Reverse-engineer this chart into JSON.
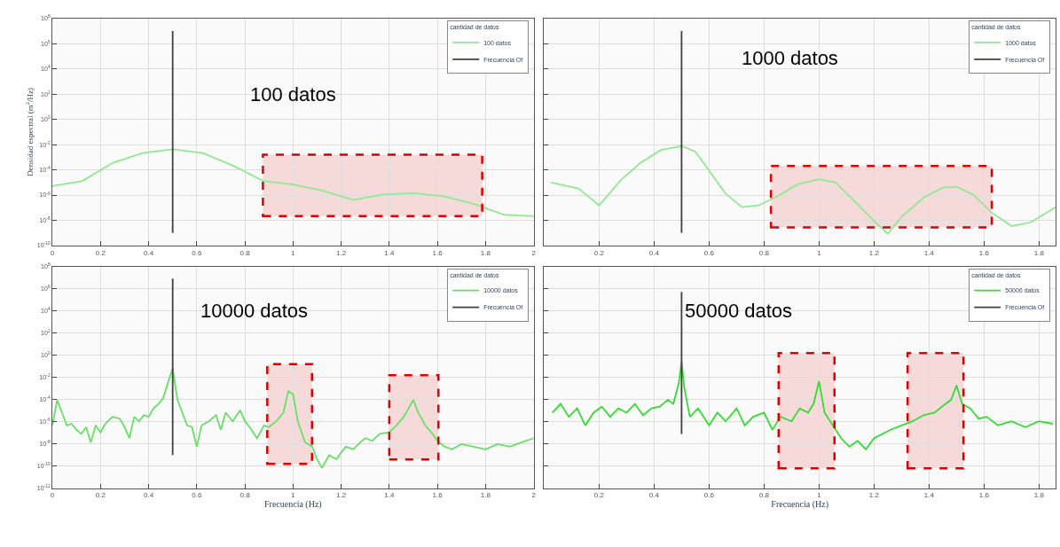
{
  "chart_data": [
    {
      "type": "line",
      "ylabel": "Densidad espectral (m$^{2}$/Hz)",
      "annotations": [
        "100 datos"
      ],
      "legend": "top right",
      "legend_title": "cantidad de datos",
      "grid": true,
      "log": "y",
      "xlim": [
        0,
        2
      ],
      "ylim": [
        1e-10,
        100000000.0
      ],
      "xticks": [
        0,
        0.2,
        0.4,
        0.6,
        0.8,
        1,
        1.2,
        1.4,
        1.6,
        1.8,
        2
      ],
      "yticks": [
        {
          "value": 100000000.0,
          "label": "10$^{8}$"
        },
        {
          "value": 1000000.0,
          "label": "10$^{6}$"
        },
        {
          "value": 10000.0,
          "label": "10$^{4}$"
        },
        {
          "value": 100,
          "label": "10$^{2}$"
        },
        {
          "value": 1,
          "label": "10$^{0}$"
        },
        {
          "value": 0.01,
          "label": "10$^{-2}$"
        },
        {
          "value": 0.0001,
          "label": "10$^{-4}$"
        },
        {
          "value": 1e-06,
          "label": "10$^{-6}$"
        },
        {
          "value": 1e-08,
          "label": "10$^{-8}$"
        },
        {
          "value": 1e-10,
          "label": "10$^{-10}$"
        }
      ],
      "bands": [
        {
          "axis": "x",
          "from": 0.875,
          "to": 1.786,
          "color": "#e00000"
        }
      ],
      "series": [
        {
          "name": "100 datos",
          "color": "#90e890",
          "x": [
            0,
            0.125,
            0.25,
            0.375,
            0.5,
            0.625,
            0.75,
            0.875,
            1.0,
            1.125,
            1.25,
            1.375,
            1.5,
            1.625,
            1.75,
            1.875,
            2.0
          ],
          "values": [
            5.1e-06,
            1.3e-05,
            0.00035,
            0.0021,
            0.0043,
            0.0021,
            0.00022,
            1.3e-05,
            6.8e-06,
            2.2e-06,
            4.1e-07,
            1.1e-06,
            1.4e-06,
            8.1e-07,
            2e-07,
            2.8e-08,
            2.1e-08
          ]
        },
        {
          "name": "Frecuencia Of",
          "color": "#404040",
          "x": [
            0.5,
            0.5
          ],
          "values": [
            10000000.0,
            1e-09
          ]
        }
      ]
    },
    {
      "type": "line",
      "annotations": [
        "1000 datos"
      ],
      "legend": "top right",
      "legend_title": "cantidad de datos",
      "grid": true,
      "log": "y",
      "tick_labels": "x",
      "xlim": [
        0,
        1.86
      ],
      "ylim": [
        1e-10,
        100000000.0
      ],
      "xticks": [
        0.2,
        0.4,
        0.6,
        0.8,
        1,
        1.2,
        1.4,
        1.6,
        1.8
      ],
      "yticks": [
        100000000.0,
        1000000.0,
        10000.0,
        100,
        1,
        0.01,
        0.0001,
        1e-06,
        1e-08,
        1e-10
      ],
      "bands": [
        {
          "axis": "x",
          "from": 0.825,
          "to": 1.628,
          "color": "#e00000"
        }
      ],
      "series": [
        {
          "name": "1000 datos",
          "color": "#90e890",
          "x": [
            0.025,
            0.125,
            0.2,
            0.28,
            0.35,
            0.425,
            0.5,
            0.55,
            0.6,
            0.66,
            0.72,
            0.78,
            0.85,
            0.92,
            1.0,
            1.06,
            1.13,
            1.2,
            1.25,
            1.3,
            1.38,
            1.45,
            1.5,
            1.56,
            1.63,
            1.7,
            1.77,
            1.86
          ],
          "values": [
            1e-05,
            3.3e-06,
            1.5e-07,
            1.6e-05,
            0.00035,
            0.0037,
            0.0076,
            0.0028,
            8.5e-05,
            1.3e-06,
            1.1e-07,
            1.5e-07,
            8.1e-07,
            6.8e-06,
            1.8e-05,
            1e-05,
            3.1e-07,
            9.1e-09,
            8.5e-10,
            1.9e-08,
            6.2e-07,
            3.9e-06,
            4.5e-06,
            1.1e-06,
            3.7e-08,
            3.5e-09,
            6.9e-09,
            1.1e-07
          ]
        },
        {
          "name": "Frecuencia Of",
          "color": "#404040",
          "x": [
            0.5,
            0.5
          ],
          "values": [
            10000000.0,
            1e-09
          ]
        }
      ]
    },
    {
      "type": "line",
      "xlabel": "Frecuencia (Hz)",
      "annotations": [
        "10000 datos"
      ],
      "legend": "top right",
      "legend_title": "cantidad de datos",
      "grid": true,
      "log": "y",
      "xlim": [
        0,
        2
      ],
      "ylim": [
        1e-12,
        100000000.0
      ],
      "xticks": [
        0,
        0.2,
        0.4,
        0.6,
        0.8,
        1,
        1.2,
        1.4,
        1.6,
        1.8,
        2
      ],
      "yticks": [
        {
          "value": 100000000.0,
          "label": "10$^{8}$"
        },
        {
          "value": 1000000.0,
          "label": "10$^{6}$"
        },
        {
          "value": 10000.0,
          "label": "10$^{4}$"
        },
        {
          "value": 100,
          "label": "10$^{2}$"
        },
        {
          "value": 1,
          "label": "10$^{0}$"
        },
        {
          "value": 0.01,
          "label": "10$^{-2}$"
        },
        {
          "value": 0.0001,
          "label": "10$^{-4}$"
        },
        {
          "value": 1e-06,
          "label": "10$^{-6}$"
        },
        {
          "value": 1e-08,
          "label": "10$^{-8}$"
        },
        {
          "value": 1e-10,
          "label": "10$^{-10}$"
        },
        {
          "value": 1e-12,
          "label": "10$^{-12}$"
        }
      ],
      "bands": [
        {
          "axis": "x",
          "from": 0.893,
          "to": 1.079,
          "color": "#e00000"
        },
        {
          "axis": "x",
          "from": 1.4,
          "to": 1.604,
          "color": "#e00000"
        }
      ],
      "series": [
        {
          "name": "10000 datos",
          "color": "#66e066",
          "x": [
            0,
            0.02,
            0.04,
            0.06,
            0.08,
            0.1,
            0.12,
            0.14,
            0.16,
            0.18,
            0.2,
            0.22,
            0.25,
            0.28,
            0.3,
            0.32,
            0.34,
            0.36,
            0.38,
            0.4,
            0.42,
            0.44,
            0.46,
            0.48,
            0.5,
            0.52,
            0.54,
            0.56,
            0.58,
            0.6,
            0.62,
            0.65,
            0.68,
            0.7,
            0.72,
            0.75,
            0.78,
            0.8,
            0.82,
            0.85,
            0.88,
            0.9,
            0.93,
            0.96,
            0.98,
            1.0,
            1.02,
            1.05,
            1.08,
            1.1,
            1.12,
            1.15,
            1.18,
            1.2,
            1.22,
            1.25,
            1.28,
            1.3,
            1.33,
            1.36,
            1.4,
            1.43,
            1.46,
            1.48,
            1.5,
            1.52,
            1.55,
            1.58,
            1.6,
            1.63,
            1.66,
            1.7,
            1.75,
            1.8,
            1.85,
            1.9,
            1.95,
            2.0
          ],
          "values": [
            4.7e-07,
            9.3e-05,
            6.6e-06,
            4.7e-07,
            6.6e-07,
            1.9e-07,
            8e-08,
            3.3e-07,
            1.4e-08,
            4.7e-07,
            1.1e-07,
            6.6e-07,
            2.8e-06,
            1.9e-06,
            3.3e-07,
            3.3e-08,
            2.8e-06,
            1.1e-06,
            3.9e-06,
            2.8e-06,
            1.6e-05,
            3.9e-05,
            0.00013,
            0.0032,
            0.063,
            9.3e-05,
            6.6e-06,
            4.7e-07,
            3.3e-07,
            5.6e-09,
            4.7e-07,
            1.1e-06,
            3.9e-06,
            1.9e-07,
            6.6e-06,
            1.1e-06,
            1.1e-05,
            1.1e-06,
            3.3e-07,
            3.3e-08,
            4.7e-07,
            3.3e-07,
            1.1e-06,
            6.6e-06,
            0.00055,
            0.00032,
            1.1e-06,
            1.4e-08,
            5.6e-09,
            4.1e-10,
            6.9e-11,
            9.7e-10,
            4.1e-10,
            1.7e-09,
            5.6e-09,
            3.3e-09,
            1.4e-08,
            3.3e-08,
            1.9e-08,
            8e-08,
            1.1e-07,
            4.7e-07,
            2.8e-06,
            1.6e-05,
            9.3e-05,
            6.6e-06,
            4.7e-07,
            8e-08,
            1.9e-08,
            5.6e-09,
            3.3e-09,
            9.6e-09,
            5.6e-09,
            3.3e-09,
            9.6e-09,
            5.6e-09,
            1.4e-08,
            3.3e-08
          ]
        },
        {
          "name": "Frecuencia Of",
          "color": "#404040",
          "x": [
            0.5,
            0.5
          ],
          "values": [
            8000000.0,
            1e-09
          ]
        }
      ]
    },
    {
      "type": "line",
      "xlabel": "Frecuencia (Hz)",
      "annotations": [
        "50000 datos"
      ],
      "legend": "top right",
      "legend_title": "cantidad de datos",
      "grid": true,
      "log": "y",
      "tick_labels": "x",
      "xlim": [
        0,
        1.86
      ],
      "ylim": [
        1e-12,
        100000000.0
      ],
      "xticks": [
        0.2,
        0.4,
        0.6,
        0.8,
        1,
        1.2,
        1.4,
        1.6,
        1.8
      ],
      "yticks": [
        100000000.0,
        1000000.0,
        10000.0,
        100,
        1,
        0.01,
        0.0001,
        1e-06,
        1e-08,
        1e-10,
        1e-12
      ],
      "bands": [
        {
          "axis": "x",
          "from": 0.853,
          "to": 1.056,
          "color": "#e00000"
        },
        {
          "axis": "x",
          "from": 1.322,
          "to": 1.525,
          "color": "#e00000"
        }
      ],
      "series": [
        {
          "name": "50000 datos",
          "color": "#33dd33",
          "x": [
            0.03,
            0.06,
            0.09,
            0.12,
            0.15,
            0.18,
            0.21,
            0.24,
            0.27,
            0.3,
            0.33,
            0.36,
            0.39,
            0.42,
            0.45,
            0.47,
            0.49,
            0.5,
            0.51,
            0.53,
            0.56,
            0.6,
            0.63,
            0.66,
            0.7,
            0.73,
            0.76,
            0.8,
            0.83,
            0.86,
            0.9,
            0.93,
            0.96,
            0.98,
            1.0,
            1.02,
            1.05,
            1.08,
            1.11,
            1.14,
            1.17,
            1.2,
            1.23,
            1.26,
            1.3,
            1.34,
            1.38,
            1.42,
            1.46,
            1.48,
            1.5,
            1.52,
            1.55,
            1.58,
            1.61,
            1.65,
            1.7,
            1.75,
            1.8,
            1.85
          ],
          "values": [
            6.6e-06,
            4.1e-05,
            2.8e-06,
            1.6e-05,
            4.7e-07,
            6.6e-06,
            2.3e-05,
            2.8e-06,
            1.6e-05,
            6.6e-06,
            4.1e-05,
            3.9e-06,
            1.6e-05,
            2.3e-05,
            9.3e-05,
            4.1e-05,
            0.0032,
            0.26,
            0.0011,
            2.8e-06,
            1.6e-05,
            4.7e-07,
            6.6e-06,
            1.1e-06,
            1.6e-05,
            4.7e-07,
            2.8e-06,
            6.6e-06,
            1.9e-07,
            2.8e-06,
            1.1e-06,
            1.6e-05,
            6.6e-06,
            4.1e-05,
            0.0046,
            6.6e-06,
            4.7e-07,
            3.3e-08,
            5.6e-09,
            1.9e-08,
            3.3e-09,
            3.3e-08,
            8e-08,
            1.9e-07,
            4.7e-07,
            1.1e-06,
            3.9e-06,
            6.6e-06,
            4.1e-05,
            9.3e-05,
            0.0019,
            4.1e-05,
            1.6e-05,
            1.9e-06,
            2.8e-06,
            4.7e-07,
            1.1e-06,
            3.3e-07,
            1.1e-06,
            6.6e-07
          ]
        },
        {
          "name": "Frecuencia Of",
          "color": "#404040",
          "x": [
            0.5,
            0.5
          ],
          "values": [
            500000.0,
            8e-08
          ]
        }
      ]
    }
  ]
}
